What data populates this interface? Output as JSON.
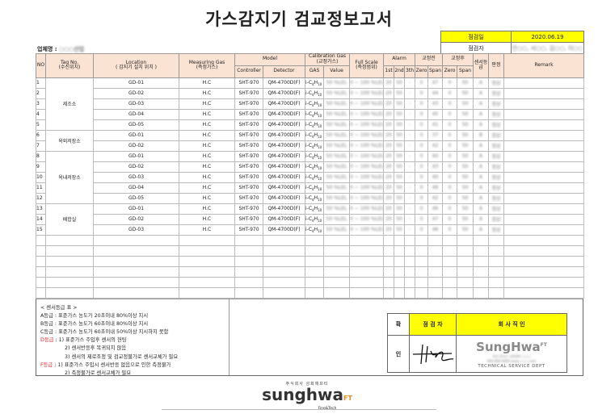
{
  "title": "가스감지기 검교정보고서",
  "info": {
    "date_label": "점검일",
    "date": "2020.06.19",
    "inspector_label": "점검자",
    "inspectors": "안○○, 서○○, 김○○, 이○○"
  },
  "company": {
    "label": "업체명 :",
    "name": "○○○산업"
  },
  "header": {
    "no": "NO",
    "tag": "Tag No.",
    "tag_sub": "(수신위치)",
    "location": "Location",
    "location_sub": "( 감지기 설치 위치 )",
    "gas": "Measuring Gas",
    "gas_sub": "(측정가스)",
    "model": "Model",
    "controller": "Controller",
    "detector": "Detector",
    "cal": "Calibration Gas",
    "cal_sub": "(교정가스)",
    "cal_gas": "GAS",
    "cal_value": "Value",
    "fs": "Full Scale",
    "fs_sub": "(측정범위)",
    "alarm": "Alarm",
    "a1": "1st",
    "a2": "2nd",
    "a3": "3th",
    "before": "교정전",
    "after": "교정후",
    "zero": "Zero",
    "span": "Span",
    "grade": "센서등급",
    "judge": "판정",
    "remark": "Remark"
  },
  "groups": [
    {
      "name": "제조소",
      "count": 5
    },
    {
      "name": "옥외저장소",
      "count": 2
    },
    {
      "name": "옥내저장소",
      "count": 5
    },
    {
      "name": "배합실",
      "count": 3
    }
  ],
  "rows": [
    {
      "no": "1",
      "tag": "GD-01",
      "gas": "H.C",
      "controller": "SHT-970",
      "detector": "QM-4700D(F)",
      "cal_gas": "i-C4H10",
      "value": "50 %LEL",
      "fs": "0 ~ 100 %LEL",
      "a1": "20",
      "a2": "50",
      "a3": "-",
      "z1": "0",
      "s1": "47",
      "z2": "0",
      "s2": "50",
      "grade": "A",
      "judge": "정상"
    },
    {
      "no": "2",
      "tag": "GD-02",
      "gas": "H.C",
      "controller": "SHT-970",
      "detector": "QM-4700D(F)",
      "cal_gas": "i-C4H10",
      "value": "50 %LEL",
      "fs": "0 ~ 100 %LEL",
      "a1": "20",
      "a2": "50",
      "a3": "-",
      "z1": "0",
      "s1": "44",
      "z2": "0",
      "s2": "50",
      "grade": "A",
      "judge": "정상"
    },
    {
      "no": "3",
      "tag": "GD-03",
      "gas": "H.C",
      "controller": "SHT-970",
      "detector": "QM-4700D(F)",
      "cal_gas": "i-C4H10",
      "value": "50 %LEL",
      "fs": "0 ~ 100 %LEL",
      "a1": "20",
      "a2": "50",
      "a3": "-",
      "z1": "0",
      "s1": "43",
      "z2": "0",
      "s2": "50",
      "grade": "A",
      "judge": "정상"
    },
    {
      "no": "4",
      "tag": "GD-04",
      "gas": "H.C",
      "controller": "SHT-970",
      "detector": "QM-4700D(F)",
      "cal_gas": "i-C4H10",
      "value": "50 %LEL",
      "fs": "0 ~ 100 %LEL",
      "a1": "20",
      "a2": "50",
      "a3": "-",
      "z1": "0",
      "s1": "45",
      "z2": "0",
      "s2": "50",
      "grade": "A",
      "judge": "정상"
    },
    {
      "no": "5",
      "tag": "GD-05",
      "gas": "H.C",
      "controller": "SHT-970",
      "detector": "QM-4700D(F)",
      "cal_gas": "i-C4H10",
      "value": "50 %LEL",
      "fs": "0 ~ 100 %LEL",
      "a1": "20",
      "a2": "50",
      "a3": "-",
      "z1": "0",
      "s1": "41",
      "z2": "0",
      "s2": "50",
      "grade": "A",
      "judge": "정상"
    },
    {
      "no": "6",
      "tag": "GD-01",
      "gas": "H.C",
      "controller": "SHT-970",
      "detector": "QM-4700D(F)",
      "cal_gas": "i-C4H10",
      "value": "50 %LEL",
      "fs": "0 ~ 100 %LEL",
      "a1": "20",
      "a2": "50",
      "a3": "-",
      "z1": "0",
      "s1": "37",
      "z2": "0",
      "s2": "50",
      "grade": "B",
      "judge": "정상"
    },
    {
      "no": "7",
      "tag": "GD-02",
      "gas": "H.C",
      "controller": "SHT-970",
      "detector": "QM-4700D(F)",
      "cal_gas": "i-C4H10",
      "value": "50 %LEL",
      "fs": "0 ~ 100 %LEL",
      "a1": "20",
      "a2": "50",
      "a3": "-",
      "z1": "0",
      "s1": "42",
      "z2": "0",
      "s2": "50",
      "grade": "A",
      "judge": "정상"
    },
    {
      "no": "8",
      "tag": "GD-01",
      "gas": "H.C",
      "controller": "SHT-970",
      "detector": "QM-4700D(F)",
      "cal_gas": "i-C4H10",
      "value": "50 %LEL",
      "fs": "0 ~ 100 %LEL",
      "a1": "20",
      "a2": "50",
      "a3": "-",
      "z1": "0",
      "s1": "40",
      "z2": "0",
      "s2": "50",
      "grade": "A",
      "judge": "정상"
    },
    {
      "no": "9",
      "tag": "GD-02",
      "gas": "H.C",
      "controller": "SHT-970",
      "detector": "QM-4700D(F)",
      "cal_gas": "i-C4H10",
      "value": "50 %LEL",
      "fs": "0 ~ 100 %LEL",
      "a1": "20",
      "a2": "50",
      "a3": "-",
      "z1": "0",
      "s1": "43",
      "z2": "0",
      "s2": "50",
      "grade": "A",
      "judge": "정상"
    },
    {
      "no": "10",
      "tag": "GD-03",
      "gas": "H.C",
      "controller": "SHT-970",
      "detector": "QM-4700D(F)",
      "cal_gas": "i-C4H10",
      "value": "50 %LEL",
      "fs": "0 ~ 100 %LEL",
      "a1": "20",
      "a2": "50",
      "a3": "-",
      "z1": "0",
      "s1": "40",
      "z2": "0",
      "s2": "50",
      "grade": "A",
      "judge": "정상"
    },
    {
      "no": "11",
      "tag": "GD-04",
      "gas": "H.C",
      "controller": "SHT-970",
      "detector": "QM-4700D(F)",
      "cal_gas": "i-C4H10",
      "value": "50 %LEL",
      "fs": "0 ~ 100 %LEL",
      "a1": "20",
      "a2": "50",
      "a3": "-",
      "z1": "0",
      "s1": "49",
      "z2": "0",
      "s2": "50",
      "grade": "A",
      "judge": "정상"
    },
    {
      "no": "12",
      "tag": "GD-05",
      "gas": "H.C",
      "controller": "SHT-970",
      "detector": "QM-4700D(F)",
      "cal_gas": "i-C4H10",
      "value": "50 %LEL",
      "fs": "0 ~ 100 %LEL",
      "a1": "20",
      "a2": "50",
      "a3": "-",
      "z1": "0",
      "s1": "42",
      "z2": "0",
      "s2": "50",
      "grade": "A",
      "judge": "정상"
    },
    {
      "no": "13",
      "tag": "GD-01",
      "gas": "H.C",
      "controller": "SHT-970",
      "detector": "QM-4700D(F)",
      "cal_gas": "i-C4H10",
      "value": "50 %LEL",
      "fs": "0 ~ 100 %LEL",
      "a1": "20",
      "a2": "50",
      "a3": "-",
      "z1": "0",
      "s1": "46",
      "z2": "0",
      "s2": "50",
      "grade": "A",
      "judge": "정상"
    },
    {
      "no": "14",
      "tag": "GD-02",
      "gas": "H.C",
      "controller": "SHT-970",
      "detector": "QM-4700D(F)",
      "cal_gas": "i-C4H10",
      "value": "50 %LEL",
      "fs": "0 ~ 100 %LEL",
      "a1": "20",
      "a2": "50",
      "a3": "-",
      "z1": "0",
      "s1": "47",
      "z2": "0",
      "s2": "50",
      "grade": "A",
      "judge": "정상"
    },
    {
      "no": "15",
      "tag": "GD-03",
      "gas": "H.C",
      "controller": "SHT-970",
      "detector": "QM-4700D(F)",
      "cal_gas": "i-C4H10",
      "value": "50 %LEL",
      "fs": "0 ~ 100 %LEL",
      "a1": "20",
      "a2": "50",
      "a3": "-",
      "z1": "0",
      "s1": "46",
      "z2": "0",
      "s2": "50",
      "grade": "A",
      "judge": "정상"
    }
  ],
  "legend": {
    "title": "< 센서등급 표 >",
    "a": "A등급 : 표준가스 농도가 20초이내 80%이상 지시",
    "b": "B등급 : 표준가스 농도가 60초이내 80%이상 지시",
    "c": "C등급 : 표준가스 농도가 60초이내 50%이상 지시하지 못함",
    "d_label": "D등급",
    "d1": " : 1) 표준가스 주입후 센서의 헌팅",
    "d2": "2) 센서반응후 복귀되지 않음",
    "d3": "3) 센서의 제로조정 및 검교정불가로 센서교체가 필요",
    "f_label": "F등급",
    "f1": " : 1) 표준가스 주입시 센서반응 없음으로 인한 측정불가",
    "f2": "2) 측정불가로 센서교체가 필요"
  },
  "sign": {
    "side1": "확",
    "side2": "인",
    "inspector": "점 검 자",
    "company_confirm": "회 사 직 인",
    "stamp_name": "SungHwa",
    "stamp_ft": "FT",
    "stamp_dept": "TECHNICAL SERVICE DEPT"
  },
  "footer": {
    "company_kr": "주식회사 성화에프티",
    "logo": "sunghwa",
    "logo_ft": "FT",
    "logo_sub": "Fine&Tech"
  },
  "colors": {
    "header_bg": "#fbe3d3",
    "highlight": "#ffff00",
    "grade_red": "#dd2222"
  }
}
